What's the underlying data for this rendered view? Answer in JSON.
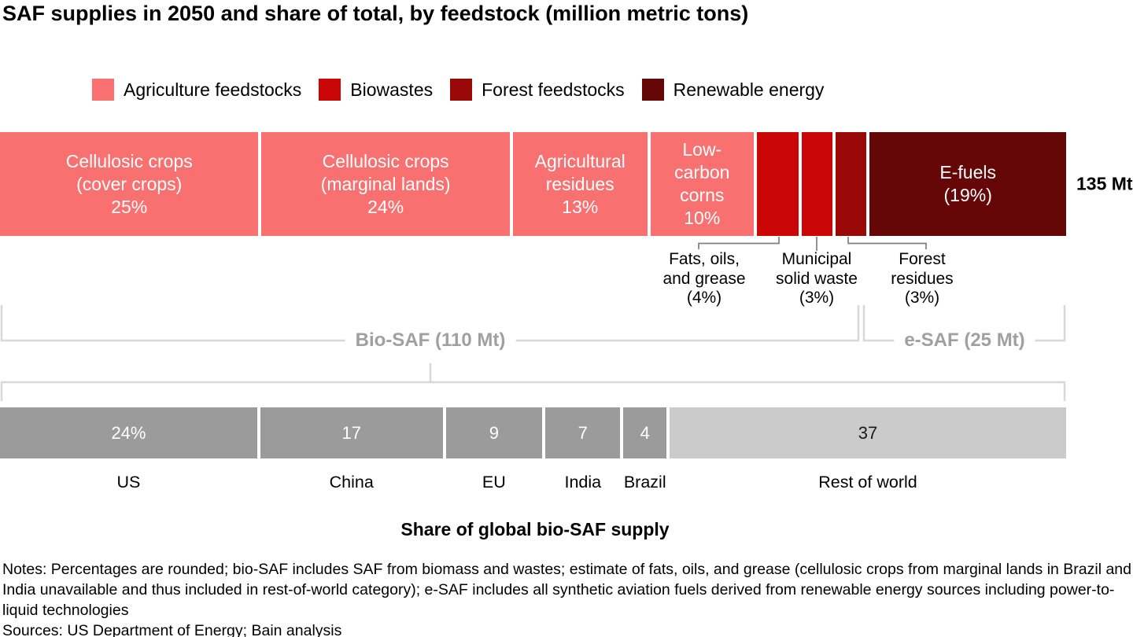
{
  "title": "SAF supplies in 2050 and share of total, by feedstock (million metric tons)",
  "total_label": "135 Mt",
  "legend": [
    {
      "label": "Agriculture feedstocks",
      "color": "#f8706f"
    },
    {
      "label": "Biowastes",
      "color": "#cb0606"
    },
    {
      "label": "Forest feedstocks",
      "color": "#9b0808"
    },
    {
      "label": "Renewable energy",
      "color": "#650707"
    }
  ],
  "chart_data": [
    {
      "type": "bar",
      "subtype": "horizontal-stacked",
      "title": "SAF supplies in 2050 and share of total, by feedstock (million metric tons)",
      "unit": "percent of 135 Mt total",
      "total": "135 Mt",
      "segments": [
        {
          "label": "Cellulosic crops (cover crops)",
          "value_pct": 25,
          "group": "Agriculture feedstocks",
          "color": "#f8706f",
          "bar_label_lines": [
            "Cellulosic crops",
            "(cover crops)",
            "25%"
          ]
        },
        {
          "label": "Cellulosic crops (marginal lands)",
          "value_pct": 24,
          "group": "Agriculture feedstocks",
          "color": "#f8706f",
          "bar_label_lines": [
            "Cellulosic crops",
            "(marginal lands)",
            "24%"
          ]
        },
        {
          "label": "Agricultural residues",
          "value_pct": 13,
          "group": "Agriculture feedstocks",
          "color": "#f8706f",
          "bar_label_lines": [
            "Agricultural",
            "residues",
            "13%"
          ]
        },
        {
          "label": "Low-carbon corns",
          "value_pct": 10,
          "group": "Agriculture feedstocks",
          "color": "#f8706f",
          "bar_label_lines": [
            "Low-",
            "carbon",
            "corns",
            "10%"
          ]
        },
        {
          "label": "Fats, oils, and grease",
          "value_pct": 4,
          "group": "Biowastes",
          "color": "#cb0606",
          "bar_label_lines": []
        },
        {
          "label": "Municipal solid waste",
          "value_pct": 3,
          "group": "Biowastes",
          "color": "#cb0606",
          "bar_label_lines": []
        },
        {
          "label": "Forest residues",
          "value_pct": 3,
          "group": "Forest feedstocks",
          "color": "#9b0808",
          "bar_label_lines": []
        },
        {
          "label": "E-fuels",
          "value_pct": 19,
          "group": "Renewable energy",
          "color": "#650707",
          "bar_label_lines": [
            "E-fuels",
            "(19%)"
          ]
        }
      ],
      "group_totals": [
        {
          "label": "Bio-SAF (110 Mt)"
        },
        {
          "label": "e-SAF (25 Mt)"
        }
      ]
    },
    {
      "type": "bar",
      "subtype": "horizontal-stacked",
      "title": "Share of global bio-SAF supply",
      "categories": [
        "US",
        "China",
        "EU",
        "India",
        "Brazil",
        "Rest of world"
      ],
      "values": [
        24,
        17,
        9,
        7,
        4,
        37
      ],
      "display_labels": [
        "24%",
        "17",
        "9",
        "7",
        "4",
        "37"
      ],
      "colors": [
        "#9b9b9b",
        "#9b9b9b",
        "#9b9b9b",
        "#9b9b9b",
        "#9b9b9b",
        "#cbcbcb"
      ],
      "text_colors": [
        "#ffffff",
        "#ffffff",
        "#ffffff",
        "#ffffff",
        "#ffffff",
        "#1a1a1a"
      ]
    }
  ],
  "annotations": [
    {
      "lines": [
        "Fats, oils,",
        "and grease",
        "(4%)"
      ]
    },
    {
      "lines": [
        "Municipal",
        "solid waste",
        "(3%)"
      ]
    },
    {
      "lines": [
        "Forest",
        "residues",
        "(3%)"
      ]
    }
  ],
  "brackets": {
    "bio_label": "Bio-SAF (110 Mt)",
    "esaf_label": "e-SAF (25 Mt)"
  },
  "share_title": "Share of global bio-SAF supply",
  "notes": "Notes: Percentages are rounded; bio-SAF includes SAF from biomass and wastes; estimate of fats, oils, and grease (cellulosic crops from marginal lands in Brazil and India unavailable and thus included in rest-of-world category); e-SAF includes all synthetic aviation fuels derived from renewable energy sources including power-to-liquid technologies",
  "sources": "Sources: US Department of Energy; Bain analysis",
  "style_colors": {
    "bracket_line": "#d8d8d8",
    "bracket_text": "#a0a0a0",
    "leader_line": "#7f7f7f",
    "dark_gray": "#9b9b9b",
    "light_gray": "#cbcbcb"
  }
}
